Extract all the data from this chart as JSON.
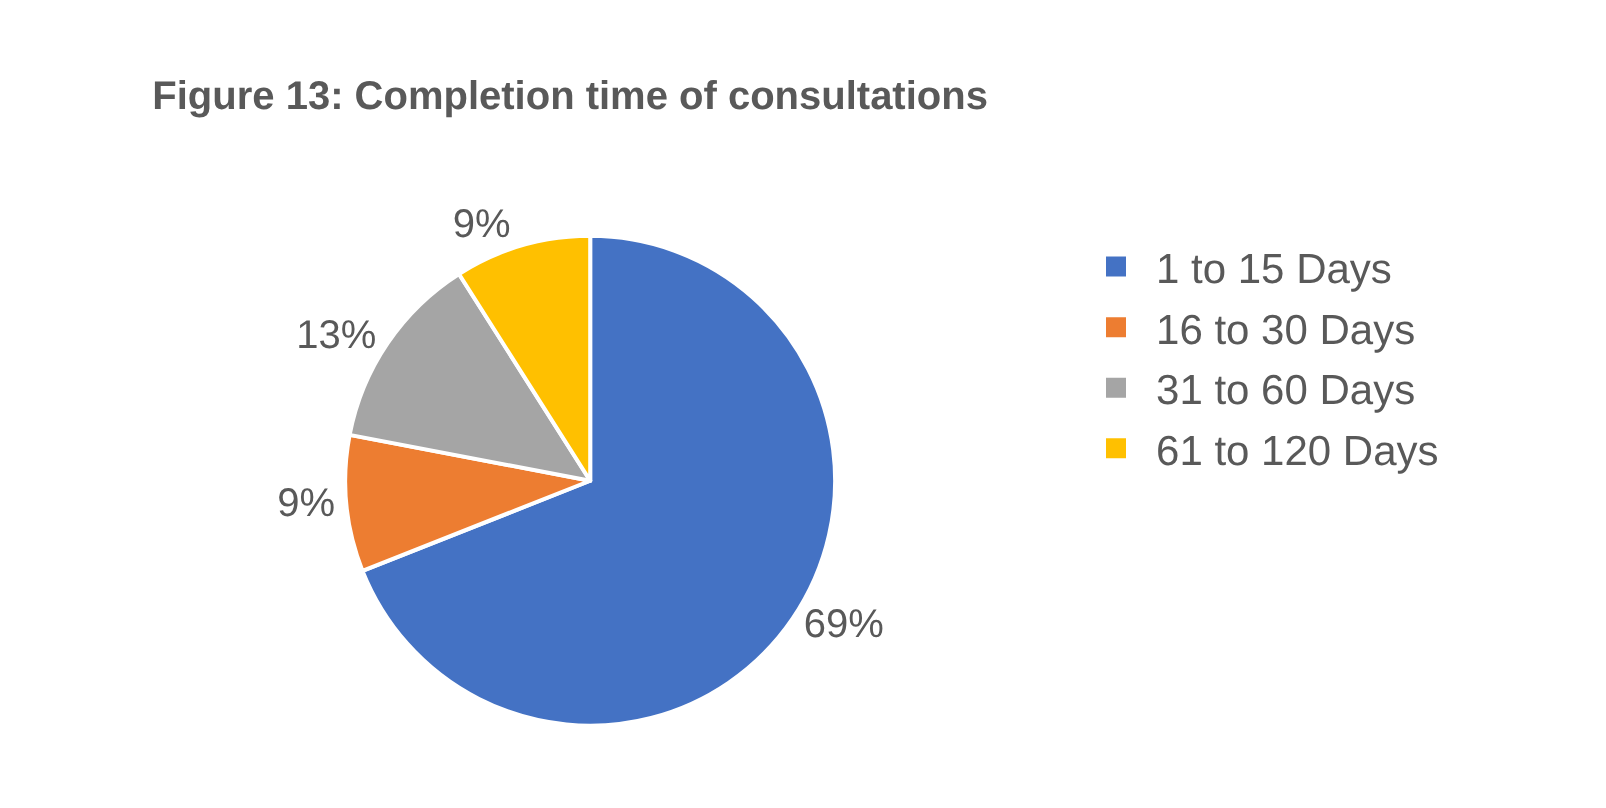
{
  "chart_data": {
    "type": "pie",
    "title": "Figure 13: Completion time of consultations",
    "categories": [
      "1 to 15 Days",
      "16 to 30 Days",
      "31 to 60 Days",
      "61 to 120 Days"
    ],
    "values": [
      69,
      9,
      13,
      9
    ],
    "value_labels": [
      "69%",
      "9%",
      "13%",
      "9%"
    ],
    "colors": [
      "#4472c4",
      "#ed7d31",
      "#a5a5a5",
      "#ffc000"
    ],
    "legend": "right"
  }
}
